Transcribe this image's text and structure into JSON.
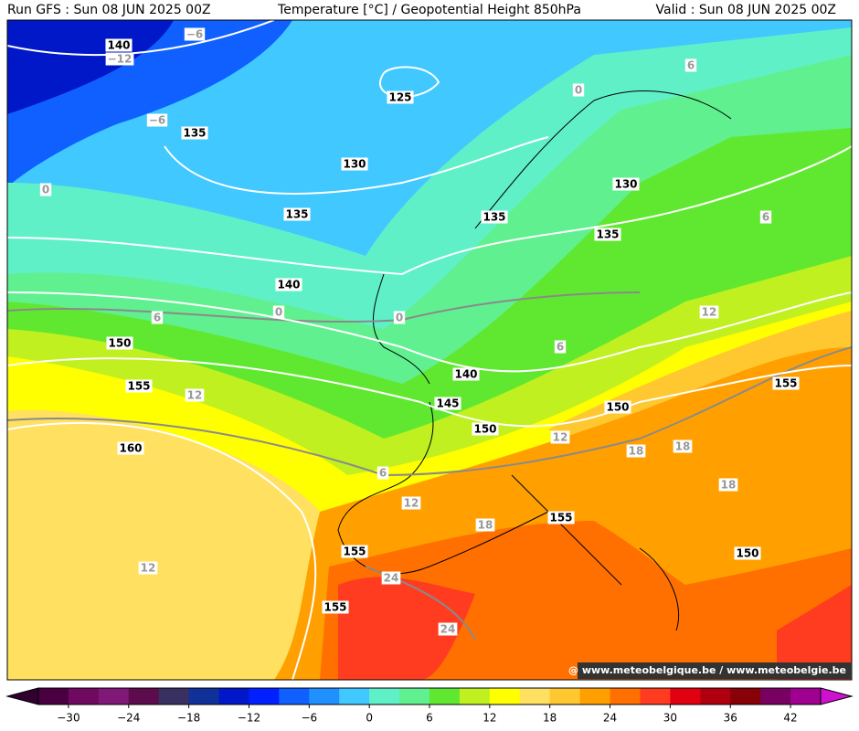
{
  "header": {
    "run": "Run GFS : Sun 08 JUN 2025 00Z",
    "title": "Temperature [°C] / Geopotential Height 850hPa",
    "valid": "Valid : Sun 08 JUN 2025 00Z"
  },
  "watermark": "@ www.meteobelgique.be / www.meteobelgie.be",
  "contour_labels": {
    "height": [
      "140",
      "125",
      "135",
      "130",
      "135",
      "130",
      "135",
      "135",
      "140",
      "150",
      "155",
      "140",
      "145",
      "150",
      "150",
      "160",
      "155",
      "155",
      "155",
      "150",
      "155"
    ],
    "temperature": [
      "−6",
      "−12",
      "−6",
      "0",
      "6",
      "0",
      "6",
      "12",
      "0",
      "0",
      "6",
      "6",
      "12",
      "12",
      "18",
      "18",
      "6",
      "12",
      "18",
      "18",
      "12",
      "24",
      "24"
    ]
  },
  "colorbar": {
    "lim": [
      -33,
      45
    ],
    "ticks": [
      {
        "value": -30,
        "label": "−30"
      },
      {
        "value": -24,
        "label": "−24"
      },
      {
        "value": -18,
        "label": "−18"
      },
      {
        "value": -12,
        "label": "−12"
      },
      {
        "value": -6,
        "label": "−6"
      },
      0,
      6,
      12,
      18,
      24,
      30,
      36,
      42
    ],
    "colors": [
      "#4a0040",
      "#700a60",
      "#801878",
      "#5c0c4c",
      "#383060",
      "#10309a",
      "#0018c8",
      "#0020ff",
      "#1060ff",
      "#2090ff",
      "#40c8ff",
      "#60f0c8",
      "#60f090",
      "#60e830",
      "#c0f020",
      "#ffff00",
      "#ffe060",
      "#ffc830",
      "#ffa000",
      "#ff7000",
      "#ff3c20",
      "#e00010",
      "#b00010",
      "#880008",
      "#780060",
      "#a00090"
    ],
    "under_color": "#300030",
    "over_color": "#d010d0"
  }
}
